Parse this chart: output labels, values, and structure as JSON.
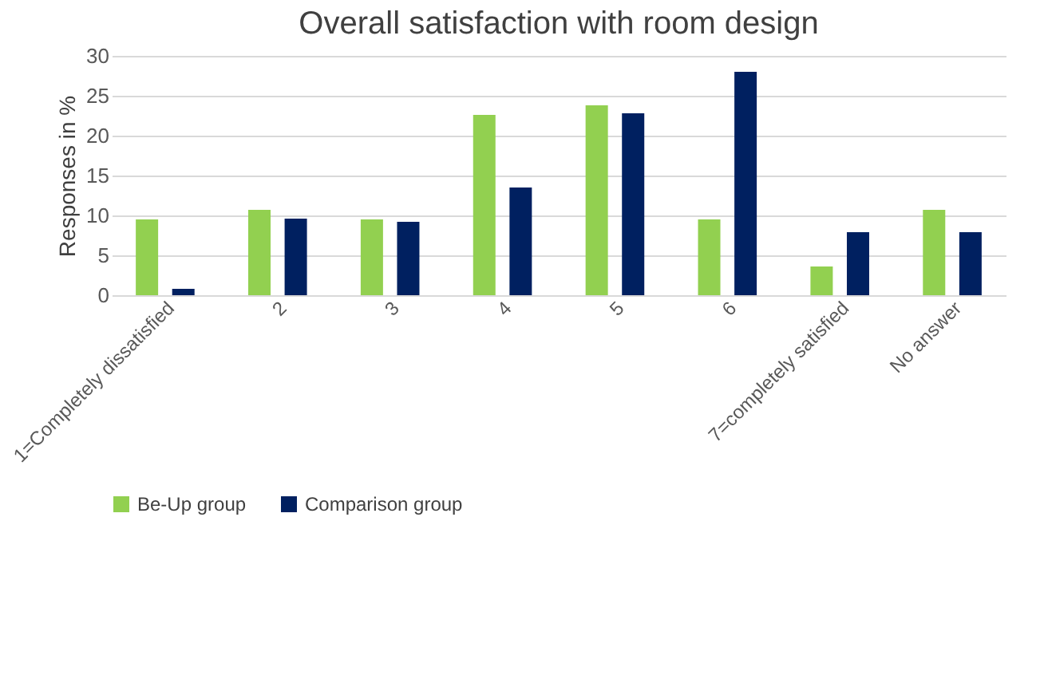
{
  "chart_data": {
    "type": "bar",
    "title": "Overall satisfaction with room design",
    "ylabel": "Responses in %",
    "categories": [
      "1=Completely dissatisfied",
      "2",
      "3",
      "4",
      "5",
      "6",
      "7=completely satisfied",
      "No answer"
    ],
    "series": [
      {
        "name": "Be-Up group",
        "color": "#92d050",
        "values": [
          9.5,
          10.7,
          9.5,
          22.6,
          23.8,
          9.5,
          3.6,
          10.7
        ]
      },
      {
        "name": "Comparison group",
        "color": "#002060",
        "values": [
          0.8,
          9.6,
          9.2,
          13.5,
          22.8,
          28.0,
          7.9,
          7.9
        ]
      }
    ],
    "ylim": [
      0,
      30
    ],
    "yticks": [
      0,
      5,
      10,
      15,
      20,
      25,
      30
    ],
    "grid": "y",
    "legend": "bottom"
  }
}
